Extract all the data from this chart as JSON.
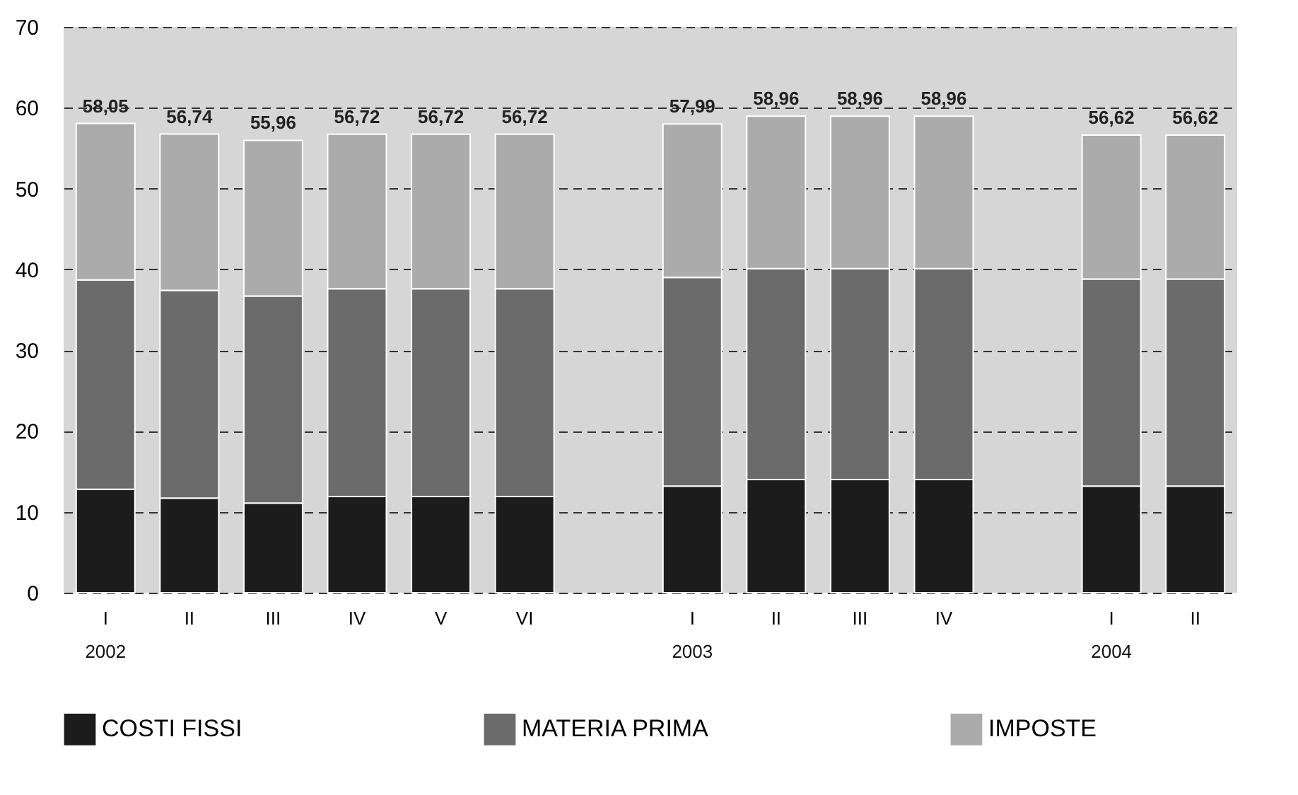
{
  "chart_data": {
    "type": "bar",
    "stacked": true,
    "categories": [
      "I",
      "II",
      "III",
      "IV",
      "V",
      "VI",
      null,
      "I",
      "II",
      "III",
      "IV",
      null,
      "I",
      "II"
    ],
    "series": [
      {
        "name": "COSTI FISSI",
        "color": "#1c1c1c",
        "values": [
          12.8,
          11.7,
          11.1,
          11.9,
          11.9,
          11.9,
          null,
          13.2,
          14.0,
          14.0,
          14.0,
          null,
          13.2,
          13.2
        ]
      },
      {
        "name": "MATERIA PRIMA",
        "color": "#6b6b6b",
        "values": [
          25.9,
          25.7,
          25.6,
          25.7,
          25.7,
          25.7,
          null,
          25.8,
          26.1,
          26.1,
          26.1,
          null,
          25.6,
          25.6
        ]
      },
      {
        "name": "IMPOSTE",
        "color": "#ababab",
        "values": [
          19.35,
          19.34,
          19.26,
          19.12,
          19.12,
          19.12,
          null,
          18.99,
          18.86,
          18.86,
          18.86,
          null,
          17.82,
          17.82
        ]
      }
    ],
    "totals": [
      "58,05",
      "56,74",
      "55,96",
      "56,72",
      "56,72",
      "56,72",
      null,
      "57,99",
      "58,96",
      "58,96",
      "58,96",
      null,
      "56,62",
      "56,62"
    ],
    "annotations": [
      "2002",
      "2003",
      "2004"
    ],
    "ylim": [
      0,
      70
    ],
    "yticks": [
      0,
      10,
      20,
      30,
      40,
      50,
      60,
      70
    ],
    "grid": "y",
    "legend": "bottom"
  }
}
